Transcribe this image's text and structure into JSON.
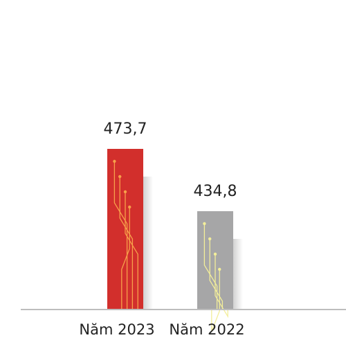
{
  "chart_data": {
    "type": "bar",
    "categories": [
      "Năm 2023",
      "Năm 2022"
    ],
    "values": [
      473.7,
      434.8
    ],
    "value_labels": [
      "473,7",
      "434,8"
    ],
    "colors": [
      "#d22f2c",
      "#a6a6a7"
    ],
    "ylim": [
      373.4,
      558
    ]
  }
}
